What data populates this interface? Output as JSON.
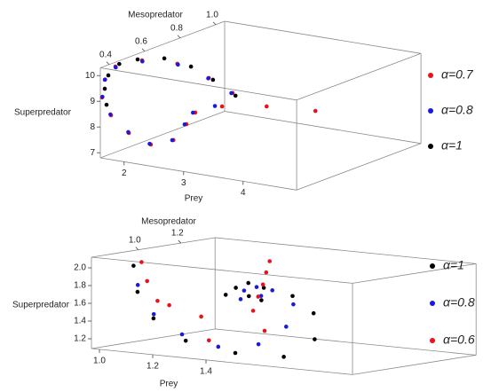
{
  "chart_data": [
    {
      "type": "scatter3d",
      "xlabel": "Prey",
      "ylabel": "Mesopredator",
      "zlabel": "Superpredator",
      "xlim": [
        1.6,
        4.9
      ],
      "ylim": [
        0.35,
        1.05
      ],
      "zlim": [
        6.8,
        10.3
      ],
      "xticks": [
        2,
        3,
        4
      ],
      "yticks": [
        0.4,
        0.6,
        0.8,
        {
          "value": 1.0,
          "label": "1.0"
        }
      ],
      "zticks": [
        7,
        8,
        9,
        10
      ],
      "series": [
        {
          "name": "α=0.7",
          "color": "#e8121b",
          "x": [
            4.32,
            3.56,
            2.87,
            2.54,
            2.51,
            2.47,
            2.24,
            1.96,
            1.72,
            1.615,
            1.615,
            1.615,
            1.645,
            1.82,
            2.14,
            2.39
          ],
          "y": [
            0.65,
            0.63,
            0.61,
            0.57,
            0.53,
            0.47,
            0.42,
            0.39,
            0.37,
            0.355,
            0.37,
            0.43,
            0.57,
            0.71,
            0.78,
            0.83
          ],
          "z": [
            8.88,
            8.82,
            8.61,
            8.35,
            7.99,
            7.51,
            7.38,
            7.8,
            8.45,
            9.14,
            9.79,
            10.15,
            10.04,
            9.61,
            9.0,
            8.38
          ]
        },
        {
          "name": "α=0.8",
          "color": "#1a1adb",
          "x": [
            2.75,
            2.5,
            2.48,
            2.45,
            2.22,
            1.95,
            1.71,
            1.62,
            1.62,
            1.62,
            1.65,
            1.83,
            2.13,
            2.37
          ],
          "y": [
            0.61,
            0.57,
            0.53,
            0.47,
            0.42,
            0.39,
            0.37,
            0.355,
            0.37,
            0.43,
            0.57,
            0.71,
            0.78,
            0.83
          ],
          "z": [
            8.58,
            8.33,
            7.97,
            7.5,
            7.4,
            7.83,
            8.48,
            9.17,
            9.8,
            10.12,
            10.0,
            9.58,
            8.98,
            8.37
          ]
        },
        {
          "name": "α=1",
          "color": "#000000",
          "x": [
            1.645,
            1.615,
            1.615,
            1.62,
            1.63,
            1.78,
            1.93,
            2.15,
            2.38
          ],
          "y": [
            0.37,
            0.37,
            0.39,
            0.45,
            0.55,
            0.65,
            0.75,
            0.8,
            0.85
          ],
          "z": [
            8.83,
            9.44,
            9.91,
            10.2,
            10.12,
            9.96,
            9.44,
            8.88,
            8.22
          ]
        }
      ]
    },
    {
      "type": "scatter3d",
      "xlabel": "Prey",
      "ylabel": "Mesopredator",
      "zlabel": "Superpredator",
      "xlim": [
        0.97,
        1.95
      ],
      "ylim": [
        0.78,
        1.36
      ],
      "zlim": [
        1.09,
        2.12
      ],
      "xticks": [
        {
          "value": 1.0,
          "label": "1.0"
        },
        1.2,
        1.4
      ],
      "yticks": [
        {
          "value": 1.0,
          "label": "1.0"
        },
        1.2
      ],
      "zticks": [
        1.2,
        1.4,
        1.6,
        1.8,
        {
          "value": 2.0,
          "label": "2.0"
        }
      ],
      "series": [
        {
          "name": "α=1",
          "color": "#000000",
          "x": [
            1.088,
            1.103,
            1.139,
            1.228,
            1.43,
            1.572,
            1.568,
            1.484,
            1.365,
            1.257,
            1.192,
            1.194,
            1.255,
            1.368,
            1.305
          ],
          "y": [
            0.83,
            0.83,
            0.86,
            0.9,
            0.88,
            0.93,
            1.08,
            1.18,
            1.23,
            1.23,
            1.18,
            1.13,
            1.16,
            1.08,
            1.1
          ],
          "z": [
            2.04,
            1.75,
            1.45,
            1.21,
            1.14,
            1.12,
            1.26,
            1.49,
            1.63,
            1.69,
            1.69,
            1.63,
            1.77,
            1.64,
            1.66
          ]
        },
        {
          "name": "α=0.8",
          "color": "#1a1adb",
          "x": [
            1.12,
            1.156,
            1.23,
            1.326,
            1.421,
            1.461,
            1.424,
            1.313,
            1.239,
            1.266,
            1.343,
            1.294
          ],
          "y": [
            0.81,
            0.84,
            0.88,
            0.93,
            1.0,
            1.08,
            1.16,
            1.2,
            1.16,
            1.11,
            1.11,
            1.15
          ],
          "z": [
            1.84,
            1.51,
            1.29,
            1.16,
            1.19,
            1.37,
            1.58,
            1.69,
            1.68,
            1.61,
            1.67,
            1.74
          ]
        },
        {
          "name": "α=0.6",
          "color": "#e8121b",
          "x": [
            1.118,
            1.123,
            1.138,
            1.15,
            1.222,
            1.315,
            1.42,
            1.321,
            1.308,
            1.31,
            1.322,
            1.335
          ],
          "y": [
            0.83,
            0.85,
            0.88,
            0.92,
            0.98,
            0.9,
            1.03,
            1.1,
            1.14,
            1.16,
            1.16,
            1.16
          ],
          "z": [
            2.09,
            1.87,
            1.64,
            1.58,
            1.45,
            1.24,
            1.33,
            1.5,
            1.64,
            1.77,
            1.91,
            2.04
          ]
        }
      ]
    }
  ]
}
